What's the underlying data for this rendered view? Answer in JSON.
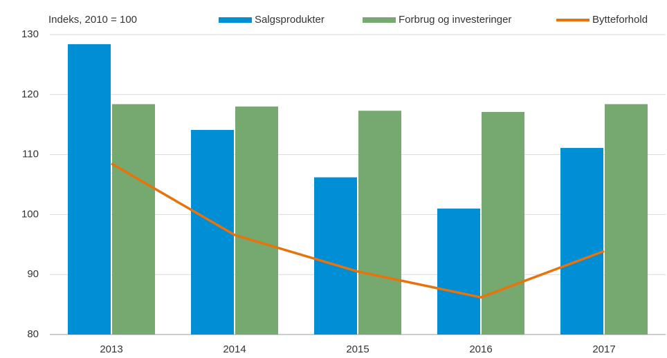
{
  "chart_data": {
    "type": "bar",
    "title": "Indeks, 2010 = 100",
    "categories": [
      "2013",
      "2014",
      "2015",
      "2016",
      "2017"
    ],
    "series": [
      {
        "name": "Salgsprodukter",
        "type": "bar",
        "color": "#008fd5",
        "values": [
          128.4,
          114.1,
          106.2,
          101.0,
          111.1
        ]
      },
      {
        "name": "Forbrug og investeringer",
        "type": "bar",
        "color": "#76a96f",
        "values": [
          118.4,
          118.0,
          117.3,
          117.1,
          118.4
        ]
      },
      {
        "name": "Bytteforhold",
        "type": "line",
        "color": "#e8720c",
        "values": [
          108.5,
          96.6,
          90.5,
          86.2,
          93.9
        ]
      }
    ],
    "ylim": [
      80,
      130
    ],
    "yticks": [
      80,
      90,
      100,
      110,
      120,
      130
    ],
    "grid": true
  }
}
